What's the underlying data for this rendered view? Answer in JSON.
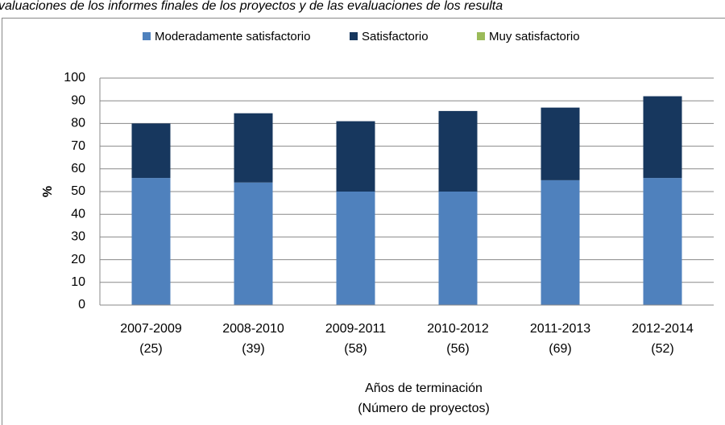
{
  "chart_data": {
    "type": "stacked-bar",
    "title": "valuaciones de los informes finales de los proyectos y de las evaluaciones de los resulta",
    "categories": [
      "2007-2009",
      "2008-2010",
      "2009-2011",
      "2010-2012",
      "2011-2013",
      "2012-2014"
    ],
    "category_counts": [
      "(25)",
      "(39)",
      "(58)",
      "(56)",
      "(69)",
      "(52)"
    ],
    "series": [
      {
        "name": "Moderadamente satisfactorio",
        "color": "#4f81bd",
        "values": [
          56,
          54,
          50,
          50,
          55,
          56
        ]
      },
      {
        "name": "Satisfactorio",
        "color": "#17375e",
        "values": [
          24,
          30.5,
          31,
          35.5,
          32,
          36
        ]
      },
      {
        "name": "Muy satisfactorio",
        "color": "#9bbb59",
        "values": [
          0,
          0,
          0,
          0,
          0,
          0
        ]
      }
    ],
    "ylabel": "%",
    "xlabel": [
      "Años de terminación",
      "(Número de proyectos)"
    ],
    "ylim": [
      0,
      100
    ],
    "yticks": [
      0,
      10,
      20,
      30,
      40,
      50,
      60,
      70,
      80,
      90,
      100
    ],
    "grid": true,
    "legend": "top"
  }
}
